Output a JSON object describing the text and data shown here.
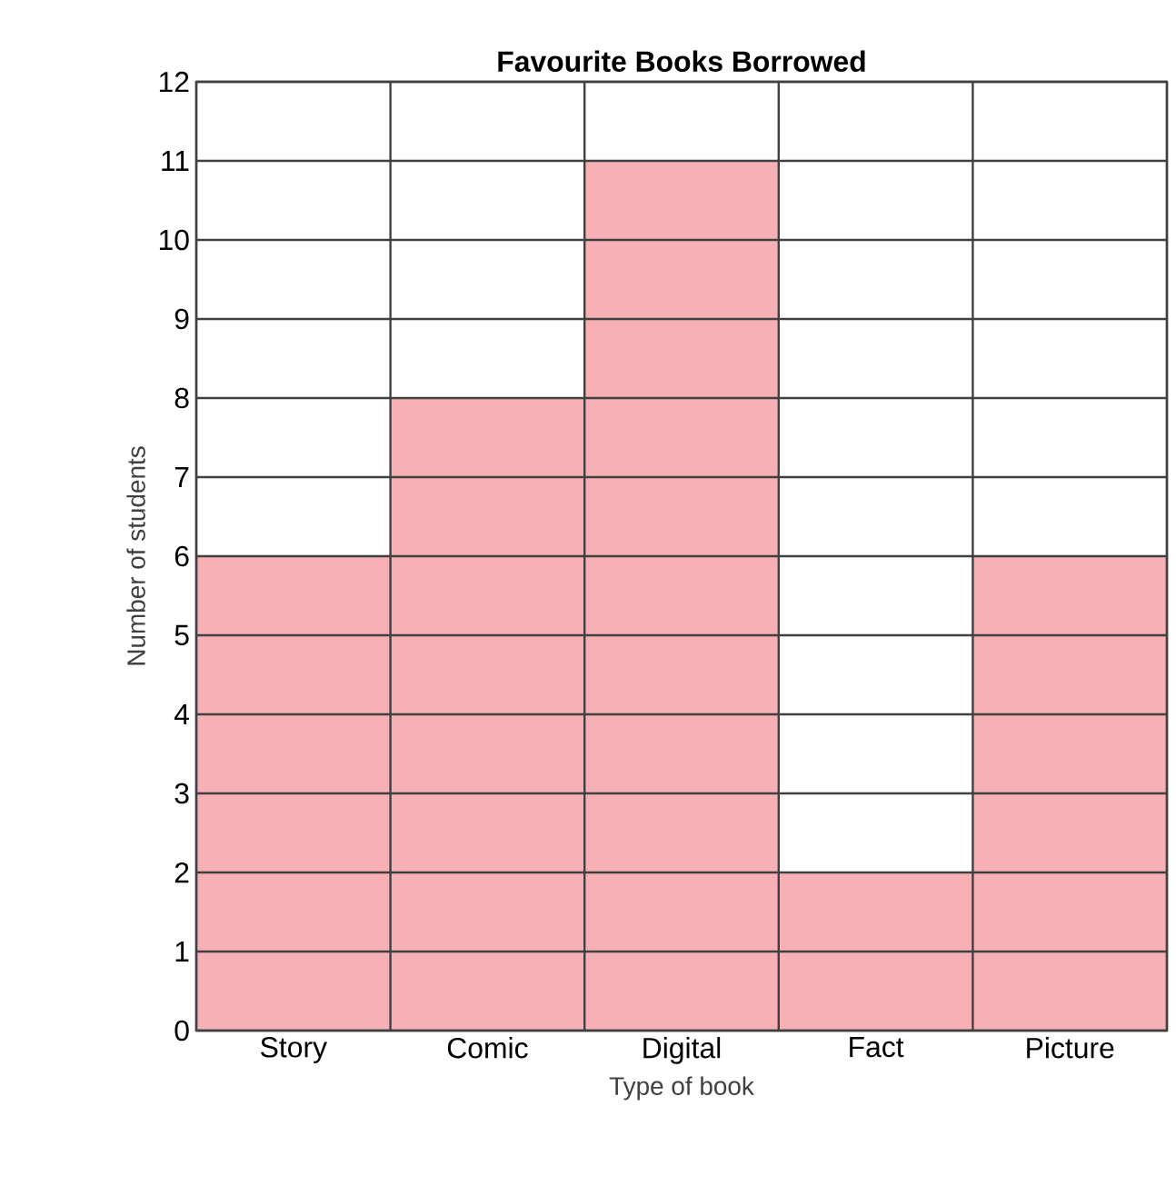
{
  "chart_data": {
    "type": "bar",
    "title": "Favourite Books Borrowed",
    "xlabel": "Type of book",
    "ylabel": "Number of students",
    "categories": [
      "Story",
      "Comic",
      "Digital",
      "Fact",
      "Picture"
    ],
    "values": [
      6,
      8,
      11,
      2,
      6
    ],
    "color": "#f7b0b5",
    "ylim": [
      0,
      12
    ],
    "yticks": [
      0,
      1,
      2,
      3,
      4,
      5,
      6,
      7,
      8,
      9,
      10,
      11,
      12
    ],
    "grid": true
  }
}
